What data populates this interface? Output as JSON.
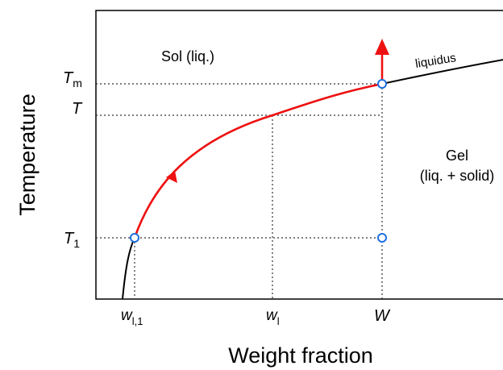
{
  "axes": {
    "x_title": "Weight fraction",
    "y_title": "Temperature"
  },
  "regions": {
    "sol": "Sol (liq.)",
    "gel_line1": "Gel",
    "gel_line2": "(liq. + solid)"
  },
  "curve_label": "liquidus",
  "y_ticks": {
    "tm": {
      "main": "T",
      "sub": "m"
    },
    "t": {
      "main": "T",
      "sub": ""
    },
    "t1": {
      "main": "T",
      "sub": "1"
    }
  },
  "x_ticks": {
    "wl1": {
      "main": "w",
      "sub": "l,1"
    },
    "wl": {
      "main": "w",
      "sub": "l"
    },
    "w": {
      "main": "W",
      "sub": ""
    }
  },
  "colors": {
    "liquidus_curve": "#000000",
    "cooling_path": "#ee1111",
    "state_points": "#1e6fe0",
    "guide_lines": "#333333"
  }
}
